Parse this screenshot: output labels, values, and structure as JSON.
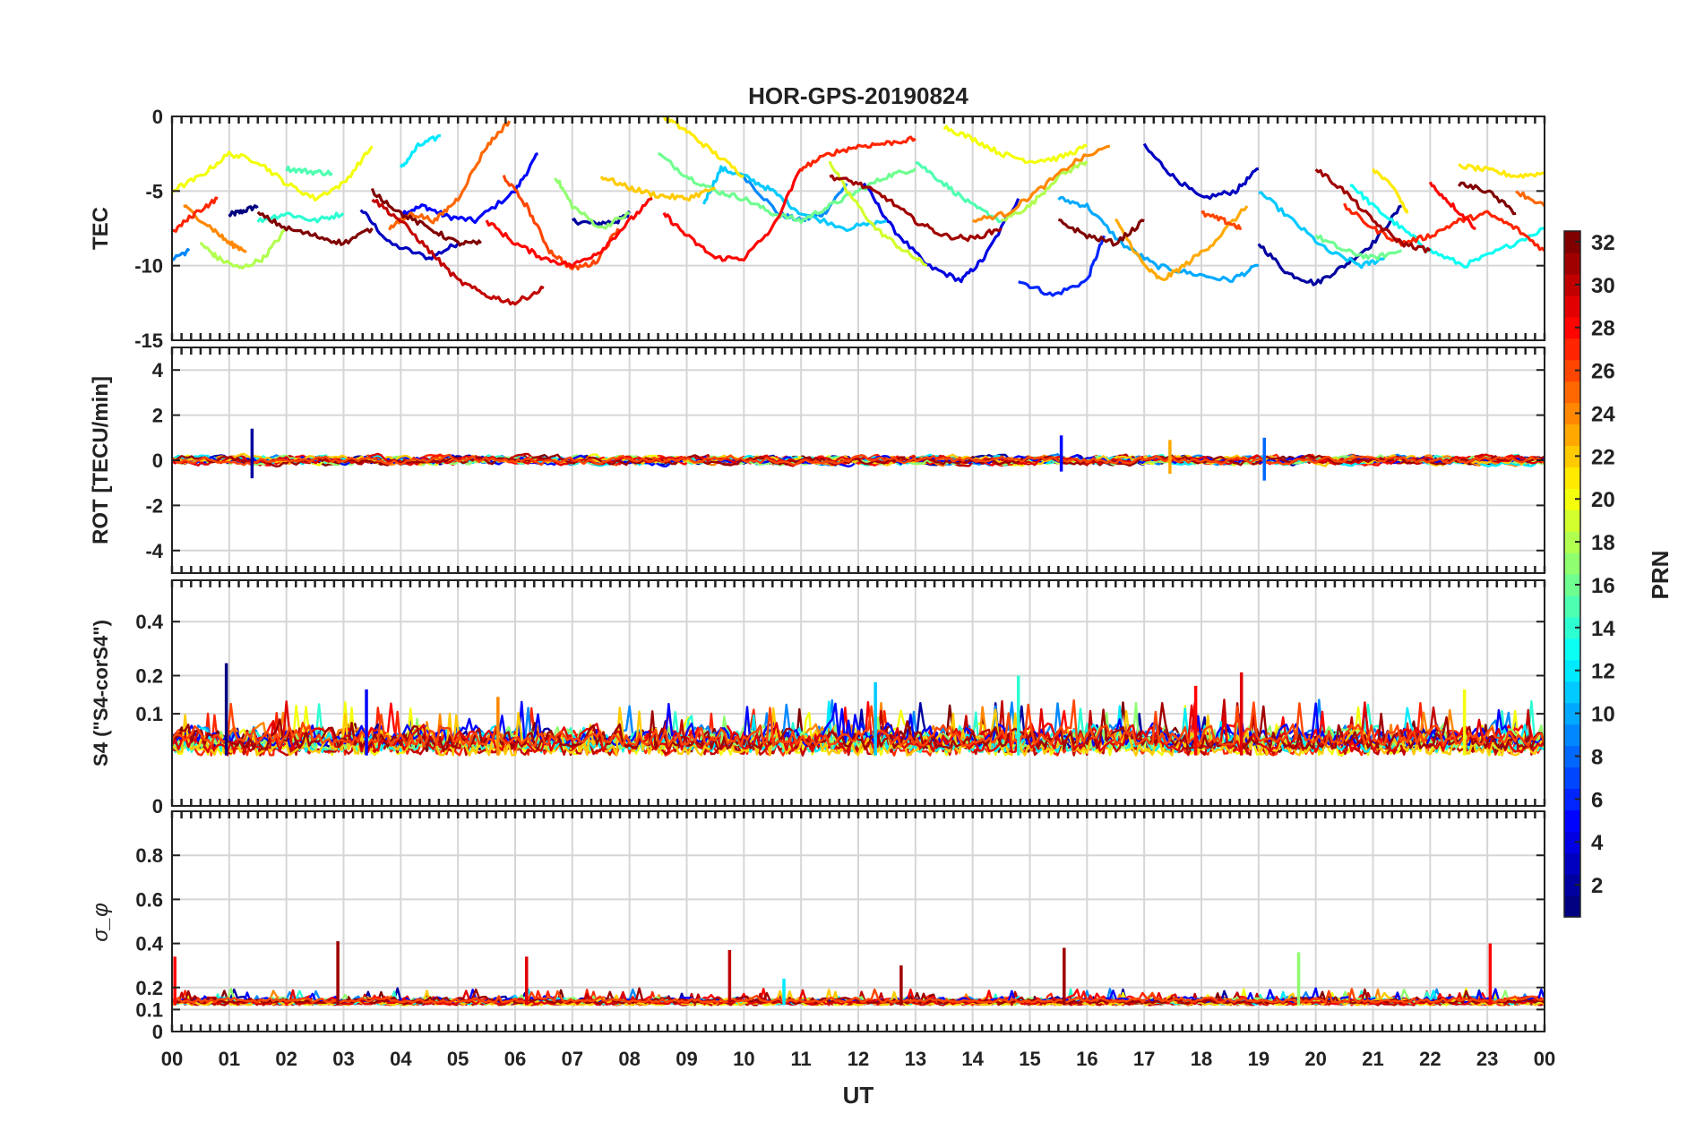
{
  "figure": {
    "title": "HOR-GPS-20190824",
    "xlabel": "UT",
    "x_ticks": [
      "00",
      "01",
      "02",
      "03",
      "04",
      "05",
      "06",
      "07",
      "08",
      "09",
      "10",
      "11",
      "12",
      "13",
      "14",
      "15",
      "16",
      "17",
      "18",
      "19",
      "20",
      "21",
      "22",
      "23",
      "00"
    ]
  },
  "colorbar": {
    "label": "PRN",
    "range": [
      1,
      32
    ],
    "ticks": [
      "2",
      "4",
      "6",
      "8",
      "10",
      "12",
      "14",
      "16",
      "18",
      "20",
      "22",
      "24",
      "26",
      "28",
      "30",
      "32"
    ],
    "colormap": "jet",
    "colors": [
      "#00008f",
      "#0000ff",
      "#0080ff",
      "#00ffff",
      "#80ff80",
      "#ffff00",
      "#ff8000",
      "#ff0000",
      "#800000"
    ]
  },
  "chart_data": [
    {
      "type": "line",
      "panel": "tec",
      "ylabel": "TEC",
      "ylim": [
        -15,
        0
      ],
      "y_ticks": [
        "0",
        "-5",
        "-10",
        "-15"
      ],
      "grid": true,
      "series": [
        {
          "prn": 1,
          "x": [
            1.0,
            1.2,
            1.5
          ],
          "y": [
            -6.6,
            -6.4,
            -6.0
          ]
        },
        {
          "prn": 3,
          "x": [
            3.3,
            3.8,
            4.5,
            5.0
          ],
          "y": [
            -6.2,
            -8.5,
            -9.5,
            -8.5
          ]
        },
        {
          "prn": 5,
          "x": [
            4.0,
            4.4,
            4.8,
            5.3,
            6.0,
            6.4
          ],
          "y": [
            -6.5,
            -6.0,
            -6.7,
            -7.0,
            -5.0,
            -2.5
          ]
        },
        {
          "prn": 2,
          "x": [
            7.0,
            7.4,
            7.8,
            8.0
          ],
          "y": [
            -7.0,
            -7.2,
            -7.0,
            -6.5
          ]
        },
        {
          "prn": 9,
          "x": [
            10.0,
            10.6,
            11.0,
            11.4,
            11.8
          ],
          "y": [
            -4.0,
            -6.5,
            -7.0,
            -6.5,
            -4.5
          ]
        },
        {
          "prn": 4,
          "x": [
            12.1,
            12.6,
            13.2,
            13.8,
            14.2,
            14.8
          ],
          "y": [
            -4.5,
            -7.5,
            -10.0,
            -11.0,
            -9.5,
            -5.5
          ]
        },
        {
          "prn": 6,
          "x": [
            14.8,
            15.4,
            16.0,
            16.3
          ],
          "y": [
            -11.0,
            -12.0,
            -11.0,
            -8.0
          ]
        },
        {
          "prn": 3,
          "x": [
            17.0,
            17.5,
            18.0,
            18.6,
            19.0
          ],
          "y": [
            -2.0,
            -4.0,
            -5.5,
            -5.0,
            -3.5
          ]
        },
        {
          "prn": 2,
          "x": [
            19.0,
            19.5,
            20.0,
            20.5,
            21.0,
            21.5
          ],
          "y": [
            -8.5,
            -10.5,
            -11.2,
            -10.0,
            -8.5,
            -6.0
          ]
        },
        {
          "prn": 9,
          "x": [
            0.0,
            0.3
          ],
          "y": [
            -9.5,
            -9.0
          ]
        },
        {
          "prn": 12,
          "x": [
            4.0,
            4.3,
            4.7
          ],
          "y": [
            -3.5,
            -2.0,
            -1.3
          ]
        },
        {
          "prn": 11,
          "x": [
            9.3,
            9.6,
            10.0,
            10.5,
            11.0,
            11.8,
            12.5
          ],
          "y": [
            -5.8,
            -3.5,
            -4.0,
            -5.0,
            -6.5,
            -7.5,
            -7.0
          ]
        },
        {
          "prn": 10,
          "x": [
            15.5,
            16.0,
            16.6,
            17.2,
            17.8,
            18.5,
            19.0
          ],
          "y": [
            -5.5,
            -6.0,
            -8.5,
            -10.0,
            -10.5,
            -11.0,
            -10.0
          ]
        },
        {
          "prn": 11,
          "x": [
            19.0,
            19.6,
            20.2,
            20.8,
            21.2
          ],
          "y": [
            -5.0,
            -7.0,
            -9.0,
            -10.0,
            -9.5
          ]
        },
        {
          "prn": 13,
          "x": [
            20.6,
            21.0,
            21.5,
            22.0,
            22.6,
            23.2,
            24.0
          ],
          "y": [
            -4.5,
            -6.0,
            -7.5,
            -9.0,
            -10.0,
            -9.0,
            -7.5
          ]
        },
        {
          "prn": 14,
          "x": [
            1.5,
            2.0,
            2.5,
            3.0
          ],
          "y": [
            -7.0,
            -6.5,
            -7.0,
            -6.5
          ]
        },
        {
          "prn": 15,
          "x": [
            2.0,
            2.4,
            2.8
          ],
          "y": [
            -3.5,
            -3.7,
            -3.8
          ]
        },
        {
          "prn": 16,
          "x": [
            8.5,
            9.0,
            9.5,
            10.0,
            10.5,
            11.0,
            11.5,
            12.0,
            12.5,
            13.0
          ],
          "y": [
            -2.5,
            -4.0,
            -5.0,
            -5.5,
            -6.5,
            -7.0,
            -6.0,
            -5.0,
            -4.0,
            -3.5
          ]
        },
        {
          "prn": 15,
          "x": [
            13.0,
            13.5,
            14.0,
            14.5
          ],
          "y": [
            -3.0,
            -4.5,
            -6.0,
            -7.0
          ]
        },
        {
          "prn": 16,
          "x": [
            20.0,
            20.5,
            21.0,
            21.5
          ],
          "y": [
            -8.0,
            -9.0,
            -9.5,
            -9.0
          ]
        },
        {
          "prn": 17,
          "x": [
            6.7,
            7.0,
            7.5,
            8.0
          ],
          "y": [
            -4.0,
            -6.0,
            -7.5,
            -6.5
          ]
        },
        {
          "prn": 18,
          "x": [
            0.5,
            0.8,
            1.2,
            1.6,
            2.0
          ],
          "y": [
            -8.5,
            -9.5,
            -10.2,
            -9.5,
            -7.5
          ]
        },
        {
          "prn": 18,
          "x": [
            14.5,
            15.0,
            15.5,
            16.0
          ],
          "y": [
            -7.0,
            -6.0,
            -4.0,
            -3.0
          ]
        },
        {
          "prn": 19,
          "x": [
            11.5,
            11.8,
            12.3,
            12.8,
            13.2
          ],
          "y": [
            -3.0,
            -5.0,
            -7.5,
            -9.0,
            -10.0
          ]
        },
        {
          "prn": 20,
          "x": [
            0.0,
            0.5,
            1.0,
            1.5,
            2.0,
            2.5,
            3.0,
            3.5
          ],
          "y": [
            -5.0,
            -4.0,
            -2.5,
            -3.0,
            -4.5,
            -5.5,
            -4.5,
            -2.0
          ]
        },
        {
          "prn": 21,
          "x": [
            8.6,
            9.0,
            9.5,
            10.0
          ],
          "y": [
            0.0,
            -1.0,
            -2.5,
            -4.0
          ]
        },
        {
          "prn": 20,
          "x": [
            13.5,
            14.0,
            14.5,
            15.0,
            15.5,
            16.0
          ],
          "y": [
            -0.7,
            -1.5,
            -2.5,
            -3.0,
            -2.8,
            -2.0
          ]
        },
        {
          "prn": 21,
          "x": [
            22.5,
            23.0,
            23.5,
            24.0
          ],
          "y": [
            -3.3,
            -3.6,
            -4.0,
            -3.8
          ]
        },
        {
          "prn": 22,
          "x": [
            7.5,
            8.0,
            8.5,
            9.0,
            9.5
          ],
          "y": [
            -4.0,
            -4.8,
            -5.3,
            -5.5,
            -4.8
          ]
        },
        {
          "prn": 23,
          "x": [
            16.5,
            17.0,
            17.3,
            17.7,
            18.2,
            18.8
          ],
          "y": [
            -7.0,
            -10.0,
            -11.0,
            -10.0,
            -8.5,
            -6.0
          ]
        },
        {
          "prn": 21,
          "x": [
            21.0,
            21.4,
            21.6
          ],
          "y": [
            -3.5,
            -5.0,
            -6.5
          ]
        },
        {
          "prn": 24,
          "x": [
            0.2,
            0.7,
            1.0,
            1.3
          ],
          "y": [
            -6.0,
            -7.5,
            -8.5,
            -9.0
          ]
        },
        {
          "prn": 25,
          "x": [
            3.8,
            4.2,
            4.6,
            5.0,
            5.5,
            5.9
          ],
          "y": [
            -7.5,
            -6.5,
            -7.0,
            -5.5,
            -2.0,
            -0.3
          ]
        },
        {
          "prn": 24,
          "x": [
            14.0,
            14.6,
            15.2,
            15.8,
            16.4
          ],
          "y": [
            -7.0,
            -6.5,
            -4.8,
            -3.0,
            -2.0
          ]
        },
        {
          "prn": 26,
          "x": [
            5.8,
            6.2,
            6.6,
            7.0,
            7.4,
            7.8
          ],
          "y": [
            -4.0,
            -6.0,
            -9.0,
            -10.2,
            -9.8,
            -7.5
          ]
        },
        {
          "prn": 25,
          "x": [
            23.5,
            24.0
          ],
          "y": [
            -5.0,
            -6.0
          ]
        },
        {
          "prn": 26,
          "x": [
            18.0,
            18.4,
            18.7
          ],
          "y": [
            -6.5,
            -7.0,
            -7.5
          ]
        },
        {
          "prn": 27,
          "x": [
            0.0,
            0.4,
            0.8
          ],
          "y": [
            -7.8,
            -6.5,
            -5.5
          ]
        },
        {
          "prn": 28,
          "x": [
            5.5,
            6.0,
            6.5,
            7.0,
            7.5,
            8.0,
            8.4
          ],
          "y": [
            -7.0,
            -8.5,
            -9.5,
            -10.0,
            -9.0,
            -7.0,
            -5.5
          ]
        },
        {
          "prn": 28,
          "x": [
            8.6,
            9.0,
            9.5,
            10.0,
            10.5,
            11.0
          ],
          "y": [
            -6.5,
            -8.0,
            -9.5,
            -9.5,
            -7.5,
            -3.5
          ]
        },
        {
          "prn": 27,
          "x": [
            11.0,
            11.5,
            12.0,
            12.5,
            13.0
          ],
          "y": [
            -3.5,
            -2.5,
            -2.0,
            -1.8,
            -1.5
          ]
        },
        {
          "prn": 27,
          "x": [
            20.5,
            21.0,
            21.5,
            22.0,
            22.5,
            23.0,
            23.5,
            24.0
          ],
          "y": [
            -6.0,
            -7.5,
            -8.5,
            -8.0,
            -7.0,
            -6.5,
            -7.5,
            -9.0
          ]
        },
        {
          "prn": 28,
          "x": [
            22.0,
            22.4,
            22.8
          ],
          "y": [
            -4.5,
            -6.0,
            -7.5
          ]
        },
        {
          "prn": 30,
          "x": [
            3.5,
            4.0,
            4.5,
            5.0,
            5.5,
            6.0,
            6.5
          ],
          "y": [
            -5.5,
            -7.0,
            -9.0,
            -11.0,
            -12.0,
            -12.5,
            -11.5
          ]
        },
        {
          "prn": 31,
          "x": [
            11.5,
            12.0,
            12.5,
            13.0,
            13.5,
            14.0,
            14.5
          ],
          "y": [
            -4.0,
            -4.5,
            -5.5,
            -7.0,
            -8.0,
            -8.2,
            -7.5
          ]
        },
        {
          "prn": 31,
          "x": [
            20.0,
            20.5,
            21.0,
            21.5,
            22.0
          ],
          "y": [
            -3.5,
            -5.0,
            -7.0,
            -8.5,
            -9.0
          ]
        },
        {
          "prn": 32,
          "x": [
            1.5,
            2.0,
            2.5,
            3.0,
            3.5
          ],
          "y": [
            -6.5,
            -7.5,
            -8.0,
            -8.5,
            -7.5
          ]
        },
        {
          "prn": 32,
          "x": [
            3.5,
            4.0,
            4.5,
            5.0,
            5.4
          ],
          "y": [
            -5.0,
            -6.5,
            -7.5,
            -8.5,
            -8.5
          ]
        },
        {
          "prn": 32,
          "x": [
            15.5,
            16.0,
            16.5,
            17.0
          ],
          "y": [
            -7.0,
            -8.0,
            -8.5,
            -7.0
          ]
        },
        {
          "prn": 32,
          "x": [
            22.5,
            23.0,
            23.5
          ],
          "y": [
            -4.5,
            -5.0,
            -6.5
          ]
        }
      ]
    },
    {
      "type": "line",
      "panel": "rot",
      "ylabel": "ROT [TECU/min]",
      "ylim": [
        -5,
        5
      ],
      "y_ticks": [
        "4",
        "2",
        "0",
        "-2",
        "-4"
      ],
      "grid": true,
      "description_values": {
        "baseline": 0,
        "typical_amplitude": 0.15,
        "spikes": [
          {
            "x": 1.4,
            "y": 1.4,
            "prn": 2
          },
          {
            "x": 1.4,
            "y": -0.8,
            "prn": 2
          },
          {
            "x": 15.55,
            "y": 1.1,
            "prn": 5
          },
          {
            "x": 15.55,
            "y": -0.5,
            "prn": 5
          },
          {
            "x": 17.45,
            "y": 0.9,
            "prn": 23
          },
          {
            "x": 17.45,
            "y": -0.6,
            "prn": 23
          },
          {
            "x": 19.1,
            "y": 1.0,
            "prn": 8
          },
          {
            "x": 19.1,
            "y": -0.9,
            "prn": 8
          }
        ]
      }
    },
    {
      "type": "line",
      "panel": "s4",
      "ylabel": "S4 (\"S4-corS4\")",
      "ylim": [
        0,
        0.6
      ],
      "y_ticks": [
        "0.4",
        "0.2",
        "0.1",
        "0"
      ],
      "grid": true,
      "description_values": {
        "baseline": 0.03,
        "spikes": [
          {
            "x": 0.95,
            "y": 0.24,
            "prn": 1
          },
          {
            "x": 3.4,
            "y": 0.16,
            "prn": 5
          },
          {
            "x": 12.3,
            "y": 0.18,
            "prn": 11
          },
          {
            "x": 14.8,
            "y": 0.2,
            "prn": 14
          },
          {
            "x": 18.7,
            "y": 0.21,
            "prn": 29
          },
          {
            "x": 17.9,
            "y": 0.17,
            "prn": 28
          },
          {
            "x": 5.7,
            "y": 0.14,
            "prn": 24
          },
          {
            "x": 22.6,
            "y": 0.16,
            "prn": 20
          }
        ]
      }
    },
    {
      "type": "line",
      "panel": "sigma_phi",
      "ylabel": "σ_φ",
      "ylim": [
        0,
        1
      ],
      "y_ticks": [
        "0.8",
        "0.6",
        "0.4",
        "0.2",
        "0.1",
        "0"
      ],
      "grid": true,
      "description_values": {
        "baseline": 0.12,
        "spikes": [
          {
            "x": 0.05,
            "y": 0.34,
            "prn": 28
          },
          {
            "x": 2.9,
            "y": 0.41,
            "prn": 31
          },
          {
            "x": 6.2,
            "y": 0.34,
            "prn": 29
          },
          {
            "x": 9.75,
            "y": 0.37,
            "prn": 30
          },
          {
            "x": 12.75,
            "y": 0.3,
            "prn": 31
          },
          {
            "x": 15.6,
            "y": 0.38,
            "prn": 31
          },
          {
            "x": 19.7,
            "y": 0.36,
            "prn": 17
          },
          {
            "x": 23.05,
            "y": 0.4,
            "prn": 28
          },
          {
            "x": 10.7,
            "y": 0.24,
            "prn": 12
          }
        ]
      }
    }
  ]
}
